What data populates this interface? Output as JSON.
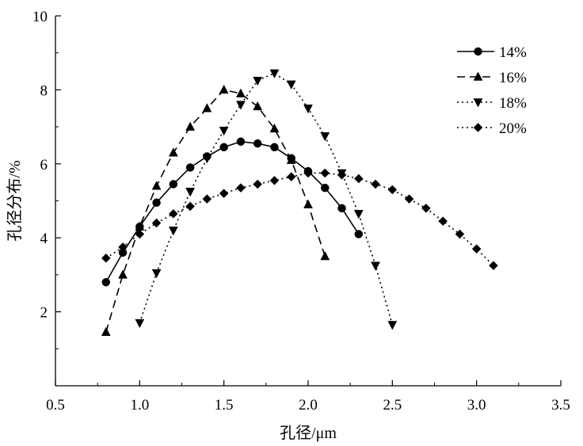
{
  "chart_data": {
    "type": "line",
    "xlabel": "孔径/μm",
    "ylabel": "孔径分布/%",
    "xlim": [
      0.5,
      3.5
    ],
    "ylim": [
      0,
      10
    ],
    "xticks": [
      0.5,
      1.0,
      1.5,
      2.0,
      2.5,
      3.0,
      3.5
    ],
    "xtick_labels": [
      "0.5",
      "1.0",
      "1.5",
      "2.0",
      "2.5",
      "3.0",
      "3.5"
    ],
    "yticks": [
      2,
      4,
      6,
      8,
      10
    ],
    "ytick_labels": [
      "2",
      "4",
      "6",
      "8",
      "10"
    ],
    "grid": false,
    "legend_position": "top-right",
    "series": [
      {
        "name": "14%",
        "marker": "circle",
        "dash": "solid",
        "x": [
          0.8,
          0.9,
          1.0,
          1.1,
          1.2,
          1.3,
          1.4,
          1.5,
          1.6,
          1.7,
          1.8,
          1.9,
          2.0,
          2.1,
          2.2,
          2.3
        ],
        "y": [
          2.8,
          3.6,
          4.3,
          4.95,
          5.45,
          5.9,
          6.2,
          6.45,
          6.6,
          6.55,
          6.45,
          6.15,
          5.8,
          5.35,
          4.8,
          4.1
        ]
      },
      {
        "name": "16%",
        "marker": "triangle-up",
        "dash": "dash",
        "x": [
          0.8,
          0.9,
          1.0,
          1.1,
          1.2,
          1.3,
          1.4,
          1.5,
          1.6,
          1.7,
          1.8,
          1.9,
          2.0,
          2.1
        ],
        "y": [
          1.45,
          3.0,
          4.3,
          5.4,
          6.3,
          7.0,
          7.5,
          8.0,
          7.9,
          7.55,
          6.95,
          6.1,
          4.9,
          3.5
        ]
      },
      {
        "name": "18%",
        "marker": "triangle-down",
        "dash": "dot",
        "x": [
          1.0,
          1.1,
          1.2,
          1.3,
          1.4,
          1.5,
          1.6,
          1.7,
          1.8,
          1.9,
          2.0,
          2.1,
          2.2,
          2.3,
          2.4,
          2.5
        ],
        "y": [
          1.7,
          3.05,
          4.2,
          5.25,
          6.15,
          6.9,
          7.6,
          8.25,
          8.45,
          8.15,
          7.5,
          6.75,
          5.75,
          4.65,
          3.25,
          1.65
        ]
      },
      {
        "name": "20%",
        "marker": "diamond",
        "dash": "dot",
        "x": [
          0.8,
          0.9,
          1.0,
          1.1,
          1.2,
          1.3,
          1.4,
          1.5,
          1.6,
          1.7,
          1.8,
          1.9,
          2.0,
          2.1,
          2.2,
          2.3,
          2.4,
          2.5,
          2.6,
          2.7,
          2.8,
          2.9,
          3.0,
          3.1
        ],
        "y": [
          3.45,
          3.75,
          4.1,
          4.4,
          4.65,
          4.85,
          5.05,
          5.2,
          5.35,
          5.45,
          5.55,
          5.65,
          5.75,
          5.75,
          5.7,
          5.6,
          5.45,
          5.3,
          5.05,
          4.8,
          4.45,
          4.1,
          3.7,
          3.25
        ]
      }
    ]
  }
}
